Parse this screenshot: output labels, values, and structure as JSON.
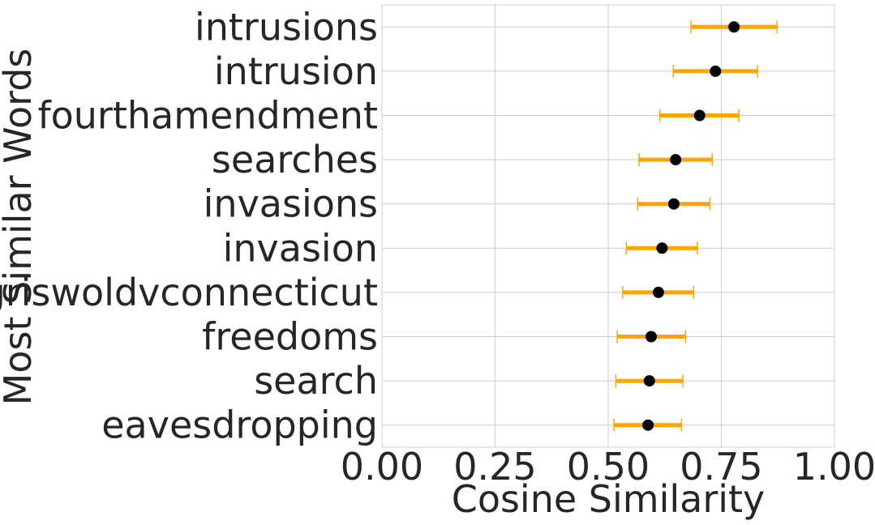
{
  "chart_data": {
    "type": "scatter",
    "xlabel": "Cosine Similarity",
    "ylabel": "Most Similar Words",
    "xlim": [
      0.0,
      1.0
    ],
    "xticks": [
      "0.00",
      "0.25",
      "0.50",
      "0.75",
      "1.00"
    ],
    "xtick_values": [
      0.0,
      0.25,
      0.5,
      0.75,
      1.0
    ],
    "grid": true,
    "colors": {
      "point": "#000000",
      "errorbar": "#FFA500",
      "grid": "#cccccc",
      "text": "#262626"
    },
    "categories": [
      "intrusions",
      "intrusion",
      "fourthamendment",
      "searches",
      "invasions",
      "invasion",
      "griswoldvconnecticut",
      "freedoms",
      "search",
      "eavesdropping"
    ],
    "values": [
      0.778,
      0.737,
      0.702,
      0.649,
      0.645,
      0.619,
      0.611,
      0.595,
      0.591,
      0.588
    ],
    "err_low": [
      0.683,
      0.644,
      0.614,
      0.568,
      0.565,
      0.54,
      0.532,
      0.52,
      0.517,
      0.513
    ],
    "err_high": [
      0.873,
      0.83,
      0.789,
      0.73,
      0.725,
      0.697,
      0.689,
      0.671,
      0.665,
      0.662
    ]
  }
}
